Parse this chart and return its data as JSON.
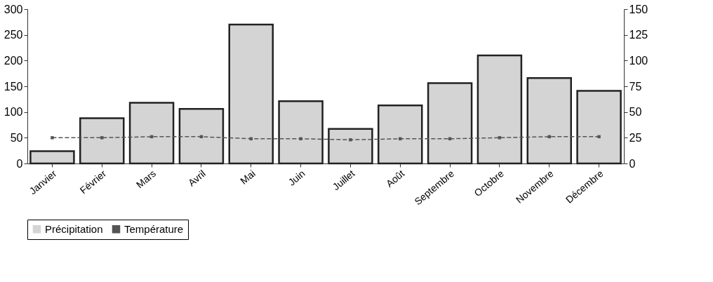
{
  "chart_data": {
    "type": "bar",
    "categories": [
      "Janvier",
      "Février",
      "Mars",
      "Avril",
      "Mai",
      "Juin",
      "Juillet",
      "Août",
      "Septembre",
      "Octobre",
      "Novembre",
      "Décembre"
    ],
    "series": [
      {
        "name": "Précipitation",
        "color": "#d4d4d4",
        "values": [
          24,
          88,
          118,
          106,
          270,
          121,
          67,
          113,
          156,
          210,
          166,
          141
        ]
      },
      {
        "name": "Température",
        "type": "line",
        "axis": "y2",
        "color": "#555555",
        "values": [
          25,
          25,
          26,
          26,
          24,
          24,
          23,
          24,
          24,
          25,
          26,
          26
        ]
      }
    ],
    "ylim": [
      0,
      300
    ],
    "yticks": [
      0,
      50,
      100,
      150,
      200,
      250,
      300
    ],
    "y2lim": [
      0,
      150
    ],
    "y2ticks": [
      0,
      25,
      50,
      75,
      100,
      125,
      150
    ],
    "grid": false,
    "legend": "bottom",
    "marker": "square",
    "line_style": "dashed"
  }
}
